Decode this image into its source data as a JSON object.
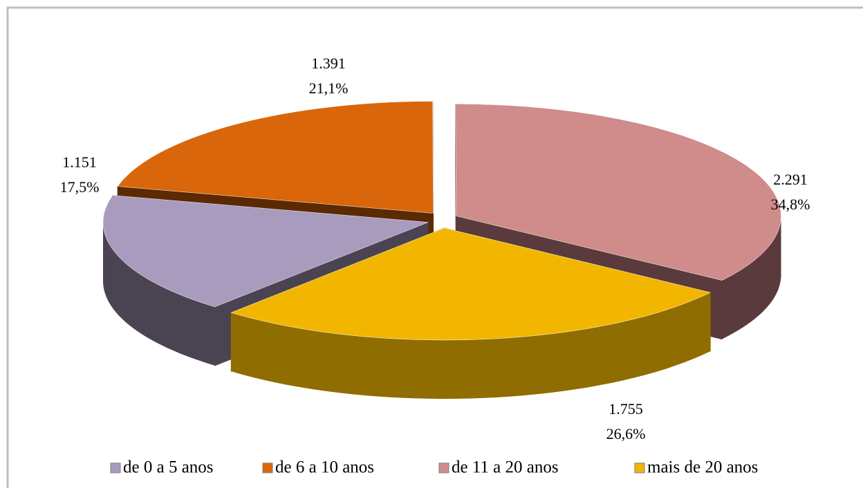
{
  "chart_data": {
    "type": "pie3d",
    "categories": [
      "de 0 a 5 anos",
      "de 6 a 10 anos",
      "de 11 a 20 anos",
      "mais de 20 anos"
    ],
    "values": [
      1151,
      1391,
      2291,
      1755
    ],
    "value_labels": [
      "1.151",
      "1.391",
      "2.291",
      "1.755"
    ],
    "percentages": [
      17.5,
      21.1,
      34.8,
      26.6
    ],
    "percentage_labels": [
      "17,5%",
      "21,1%",
      "34,8%",
      "26,6%"
    ],
    "colors": [
      "#a99bbd",
      "#d9660a",
      "#cf8c8a",
      "#f2b600"
    ],
    "side_colors": [
      "#4a4452",
      "#5c2a02",
      "#5a3a3d",
      "#8f6d00"
    ],
    "legend": "bottom"
  }
}
